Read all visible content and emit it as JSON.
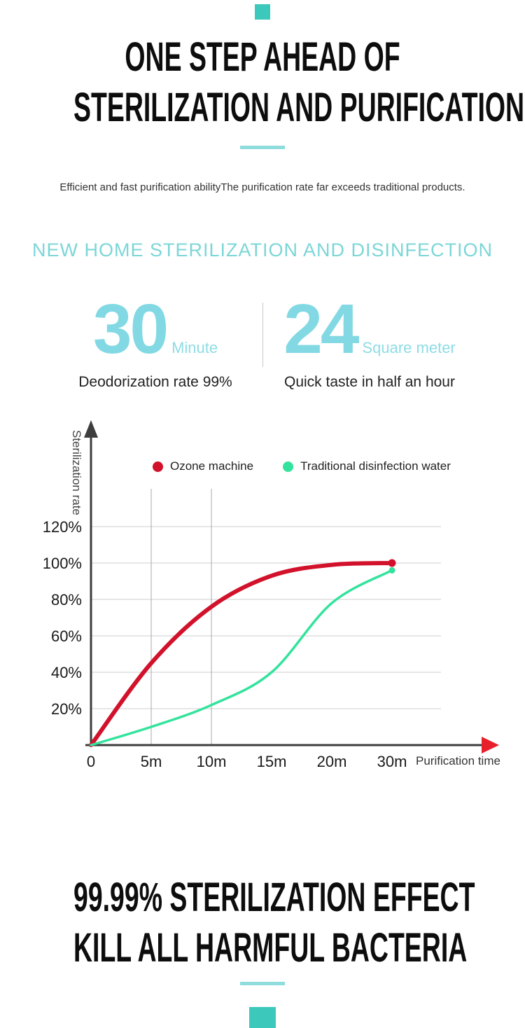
{
  "brand": {
    "accent_teal": "#7cd6d7",
    "stat_teal": "#82d9e3",
    "square_teal": "#3cc9bb",
    "red": "#d2112b",
    "green": "#33e39c"
  },
  "hero": {
    "title_line1": "ONE STEP AHEAD OF",
    "title_line2": "STERILIZATION AND PURIFICATION",
    "subtitle": "Efficient and fast purification abilityThe purification rate far exceeds traditional products."
  },
  "section": {
    "heading": "NEW HOME STERILIZATION AND DISINFECTION"
  },
  "stats": [
    {
      "value": "30",
      "unit": "Minute",
      "caption": "Deodorization rate 99%"
    },
    {
      "value": "24",
      "unit": "Square meter",
      "caption": "Quick taste in half an hour"
    }
  ],
  "chart_data": {
    "type": "line",
    "title": "",
    "xlabel": "Purification time",
    "ylabel": "Sterilization rate",
    "x_tick_labels": [
      "0",
      "5m",
      "10m",
      "15m",
      "20m",
      "30m"
    ],
    "x_values_minutes": [
      0,
      5,
      10,
      15,
      20,
      30
    ],
    "y_ticks": [
      20,
      40,
      60,
      80,
      100,
      120
    ],
    "y_tick_labels": [
      "20%",
      "40%",
      "60%",
      "80%",
      "100%",
      "120%"
    ],
    "ylim": [
      0,
      130
    ],
    "grid": true,
    "legend_position": "top-inside",
    "series": [
      {
        "name": "Ozone machine",
        "color": "#d2112b",
        "values": [
          0,
          45,
          76,
          93,
          99,
          100
        ]
      },
      {
        "name": "Traditional disinfection water",
        "color": "#33e39c",
        "values": [
          0,
          10,
          22,
          40,
          78,
          96
        ]
      }
    ]
  },
  "footer": {
    "title_line1": "99.99% STERILIZATION EFFECT",
    "title_line2": "KILL ALL HARMFUL BACTERIA"
  }
}
